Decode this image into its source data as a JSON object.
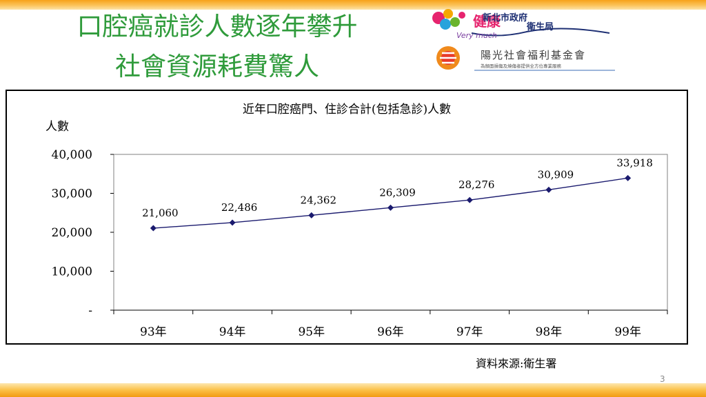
{
  "slide": {
    "title_line1": "口腔癌就診人數逐年攀升",
    "title_line2": "社會資源耗費驚人",
    "source": "資料來源:衛生署",
    "page_number": "3"
  },
  "logos": {
    "health_logo_text": "健康",
    "health_logo_subtext": "Very much",
    "government_line1": "新北市政府",
    "government_line2": "衛生局",
    "foundation_name": "陽光社會福利基金會",
    "foundation_tagline": "為顏面損傷及燒傷者提供全方位專業服務"
  },
  "colors": {
    "title_green": "#2f9b3b",
    "series_navy": "#1a1a6e",
    "band_orange": "#f7a21a"
  },
  "chart_data": {
    "type": "line",
    "title": "近年口腔癌門、住診合計(包括急診)人數",
    "ylabel": "人數",
    "xlabel": "",
    "categories": [
      "93年",
      "94年",
      "95年",
      "96年",
      "97年",
      "98年",
      "99年"
    ],
    "values": [
      21060,
      22486,
      24362,
      26309,
      28276,
      30909,
      33918
    ],
    "data_labels": [
      "21,060",
      "22,486",
      "24,362",
      "26,309",
      "28,276",
      "30,909",
      "33,918"
    ],
    "yticks": [
      "-",
      "10,000",
      "20,000",
      "30,000",
      "40,000"
    ],
    "ylim": [
      0,
      40000
    ],
    "grid": false,
    "legend": "none"
  }
}
